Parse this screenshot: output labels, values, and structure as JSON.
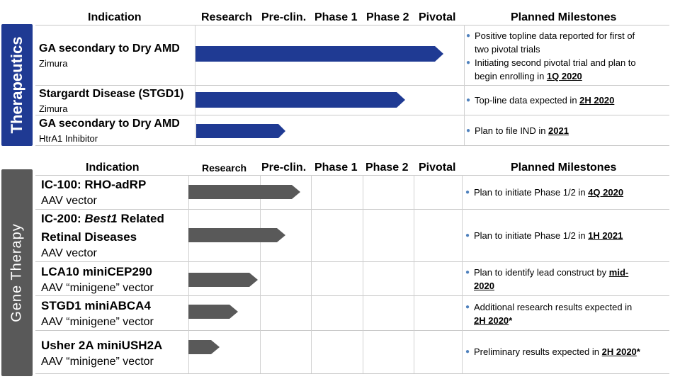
{
  "colors": {
    "therapeutics": "#1f3a93",
    "gene_therapy": "#595959",
    "bullet": "#4f81bd"
  },
  "stage_headers": [
    "Research",
    "Pre-clin.",
    "Phase 1",
    "Phase 2",
    "Pivotal"
  ],
  "therapeutics": {
    "section_label": "Therapeutics",
    "header": {
      "indication": "Indication",
      "milestones": "Planned Milestones"
    },
    "rows": [
      {
        "title": "GA secondary to Dry AMD",
        "subtitle": "Zimura",
        "progress_stage": 4.85,
        "milestones": [
          {
            "lines": [
              "Positive topline data reported  for first of",
              "two pivotal trials"
            ],
            "highlight": ""
          },
          {
            "lines": [
              "Initiating second pivotal trial and plan to",
              "begin enrolling in "
            ],
            "highlight": "1Q 2020"
          }
        ]
      },
      {
        "title": "Stargardt Disease (STGD1)",
        "subtitle": "Zimura",
        "progress_stage": 4.15,
        "milestones": [
          {
            "lines": [
              "Top-line data expected in "
            ],
            "highlight": "2H 2020"
          }
        ]
      },
      {
        "title": "GA secondary to Dry AMD",
        "subtitle": "HtrA1 Inhibitor",
        "progress_stage": 1.35,
        "milestones": [
          {
            "lines": [
              "Plan to file IND in "
            ],
            "highlight": "2021"
          }
        ]
      }
    ]
  },
  "gene_therapy": {
    "section_label": "Gene Therapy",
    "header": {
      "indication": "Indication",
      "milestones": "Planned Milestones"
    },
    "rows": [
      {
        "title": "IC-100: RHO-adRP",
        "subtitle": "AAV vector",
        "progress_stage": 2.1,
        "milestones": [
          {
            "lines": [
              "Plan to initiate Phase 1/2  in "
            ],
            "highlight": "4Q 2020"
          }
        ]
      },
      {
        "title_prefix": "IC-200: ",
        "title_italic": "Best1",
        "title_suffix": " Related",
        "title_line2": "Retinal Diseases",
        "subtitle": "AAV vector",
        "progress_stage": 1.8,
        "milestones": [
          {
            "lines": [
              "Plan to initiate Phase 1/2  in "
            ],
            "highlight": "1H 2021"
          }
        ]
      },
      {
        "title": "LCA10 miniCEP290",
        "subtitle": "AAV “minigene” vector",
        "progress_stage": 0.95,
        "milestones": [
          {
            "lines": [
              "Plan to identify lead construct by "
            ],
            "highlight": "mid-",
            "highlight_line2": "2020"
          }
        ]
      },
      {
        "title": "STGD1 miniABCA4",
        "subtitle": "AAV “minigene” vector",
        "progress_stage": 0.65,
        "milestones": [
          {
            "lines": [
              "Additional research results expected in"
            ],
            "highlight_line2": "2H 2020",
            "suffix": "*"
          }
        ]
      },
      {
        "title": "Usher 2A miniUSH2A",
        "subtitle": "AAV “minigene” vector",
        "progress_stage": 0.4,
        "milestones": [
          {
            "lines": [
              "Preliminary results expected in "
            ],
            "highlight": "2H 2020",
            "suffix": "*"
          }
        ]
      }
    ]
  }
}
